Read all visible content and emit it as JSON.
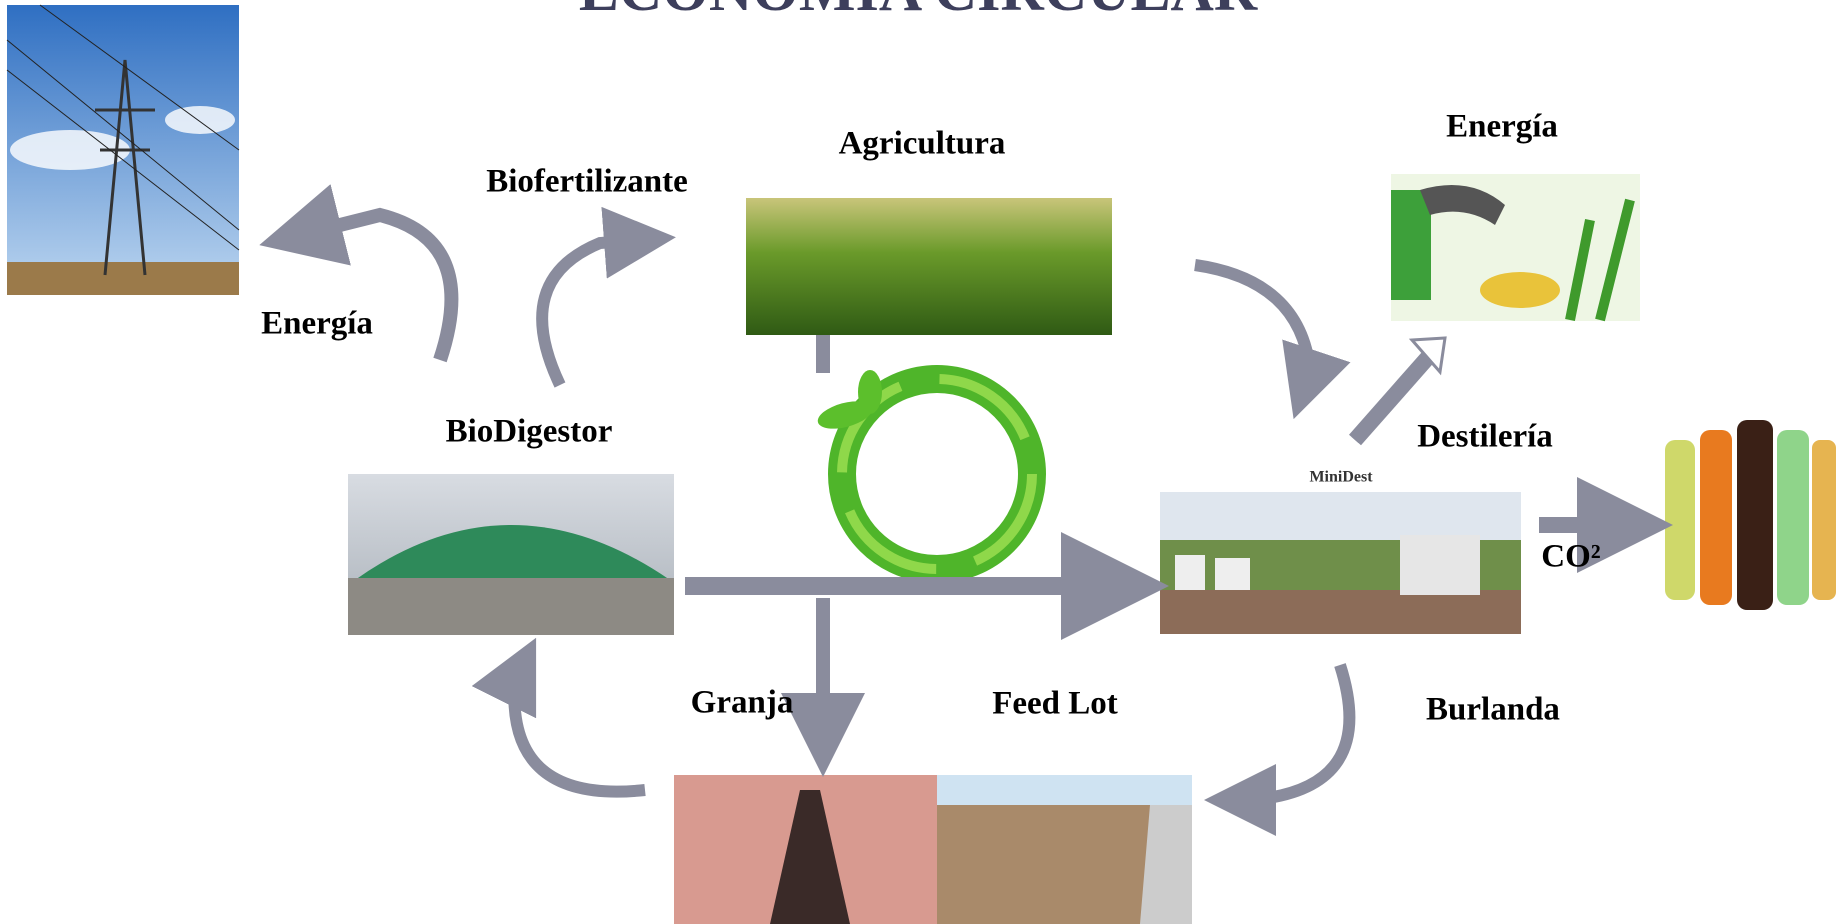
{
  "title": "ECONOMÍA CIRCULAR",
  "nodes": [
    {
      "label": "Agricultura"
    },
    {
      "label": "Biofertilizante"
    },
    {
      "label": "Energía"
    },
    {
      "label": "BioDigestor"
    },
    {
      "label": "Energía"
    },
    {
      "label": "Destilería"
    },
    {
      "label": "CO²"
    },
    {
      "label": "Granja"
    },
    {
      "label": "Feed Lot"
    },
    {
      "label": "Burlanda"
    }
  ],
  "logo": "MiniDest"
}
